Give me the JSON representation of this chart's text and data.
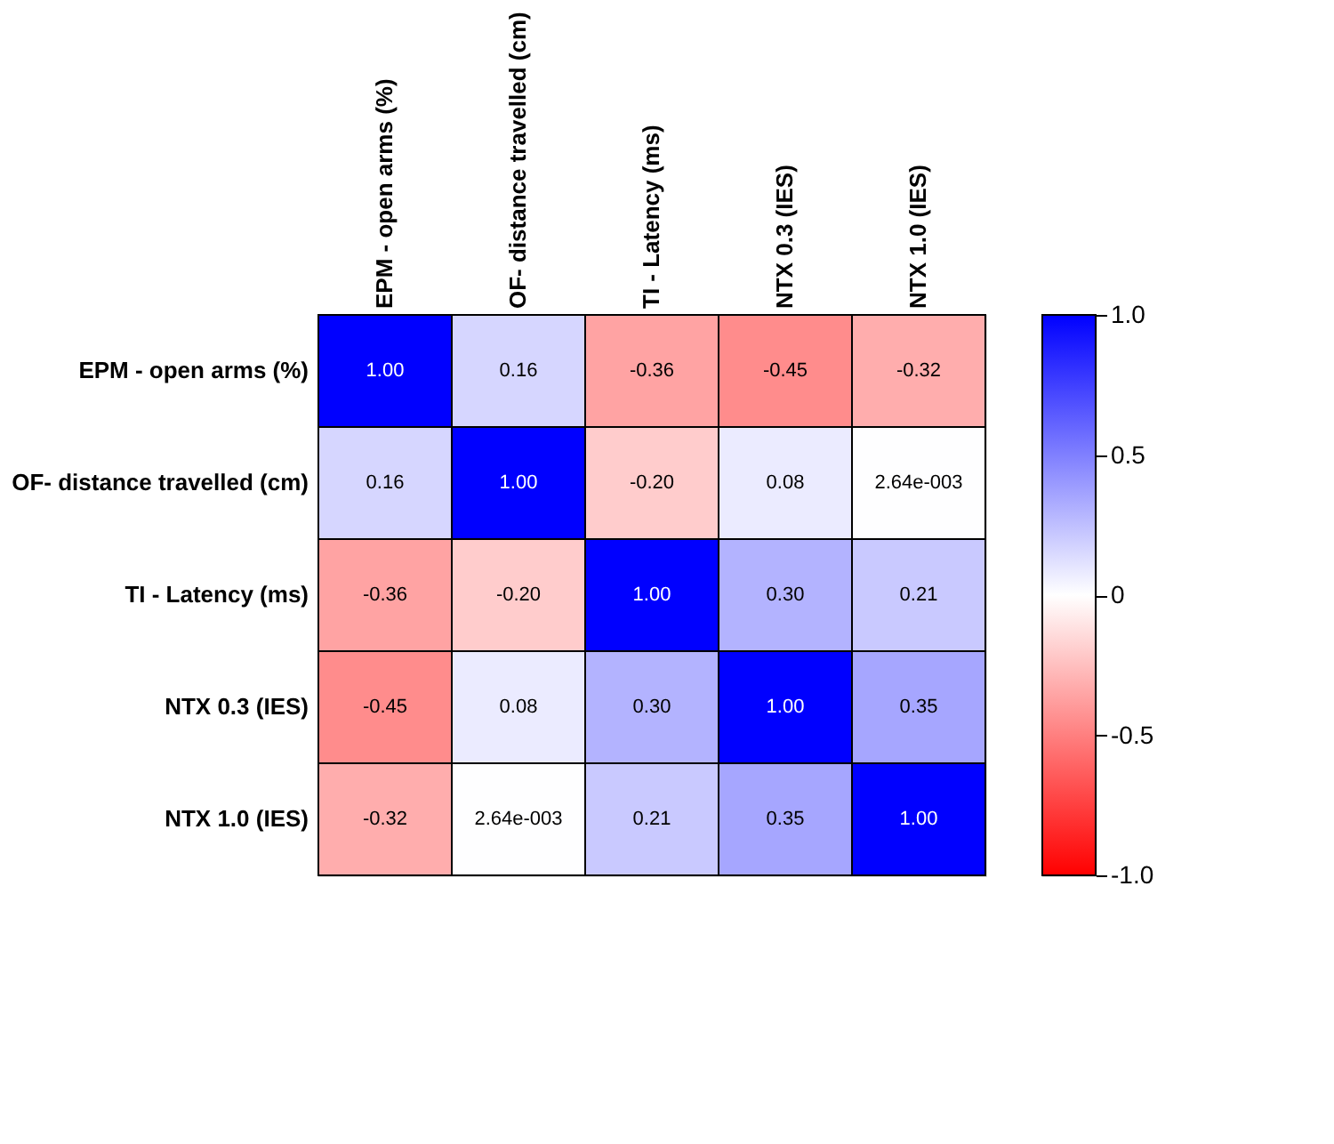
{
  "chart_data": {
    "type": "heatmap",
    "categories": [
      "EPM - open arms (%)",
      "OF- distance travelled (cm)",
      "TI - Latency (ms)",
      "NTX 0.3 (IES)",
      "NTX 1.0 (IES)"
    ],
    "y_categories": [
      "EPM - open arms (%)",
      "OF- distance travelled (cm)",
      "TI - Latency (ms)",
      "NTX 0.3 (IES)",
      "NTX 1.0 (IES)"
    ],
    "cells": [
      [
        1.0,
        0.16,
        -0.36,
        -0.45,
        -0.32
      ],
      [
        0.16,
        1.0,
        -0.2,
        0.08,
        0.00264
      ],
      [
        -0.36,
        -0.2,
        1.0,
        0.3,
        0.21
      ],
      [
        -0.45,
        0.08,
        0.3,
        1.0,
        0.35
      ],
      [
        -0.32,
        0.00264,
        0.21,
        0.35,
        1.0
      ]
    ],
    "cell_labels": [
      [
        "1.00",
        "0.16",
        "-0.36",
        "-0.45",
        "-0.32"
      ],
      [
        "0.16",
        "1.00",
        "-0.20",
        "0.08",
        "2.64e-003"
      ],
      [
        "-0.36",
        "-0.20",
        "1.00",
        "0.30",
        "0.21"
      ],
      [
        "-0.45",
        "0.08",
        "0.30",
        "1.00",
        "0.35"
      ],
      [
        "-0.32",
        "2.64e-003",
        "0.21",
        "0.35",
        "1.00"
      ]
    ],
    "clim": [
      -1.0,
      1.0
    ],
    "cticks": [
      {
        "value": 1.0,
        "label": "1.0"
      },
      {
        "value": 0.5,
        "label": "0.5"
      },
      0,
      {
        "value": -0.5,
        "label": "-0.5"
      },
      {
        "value": -1.0,
        "label": "-1.0"
      }
    ]
  }
}
